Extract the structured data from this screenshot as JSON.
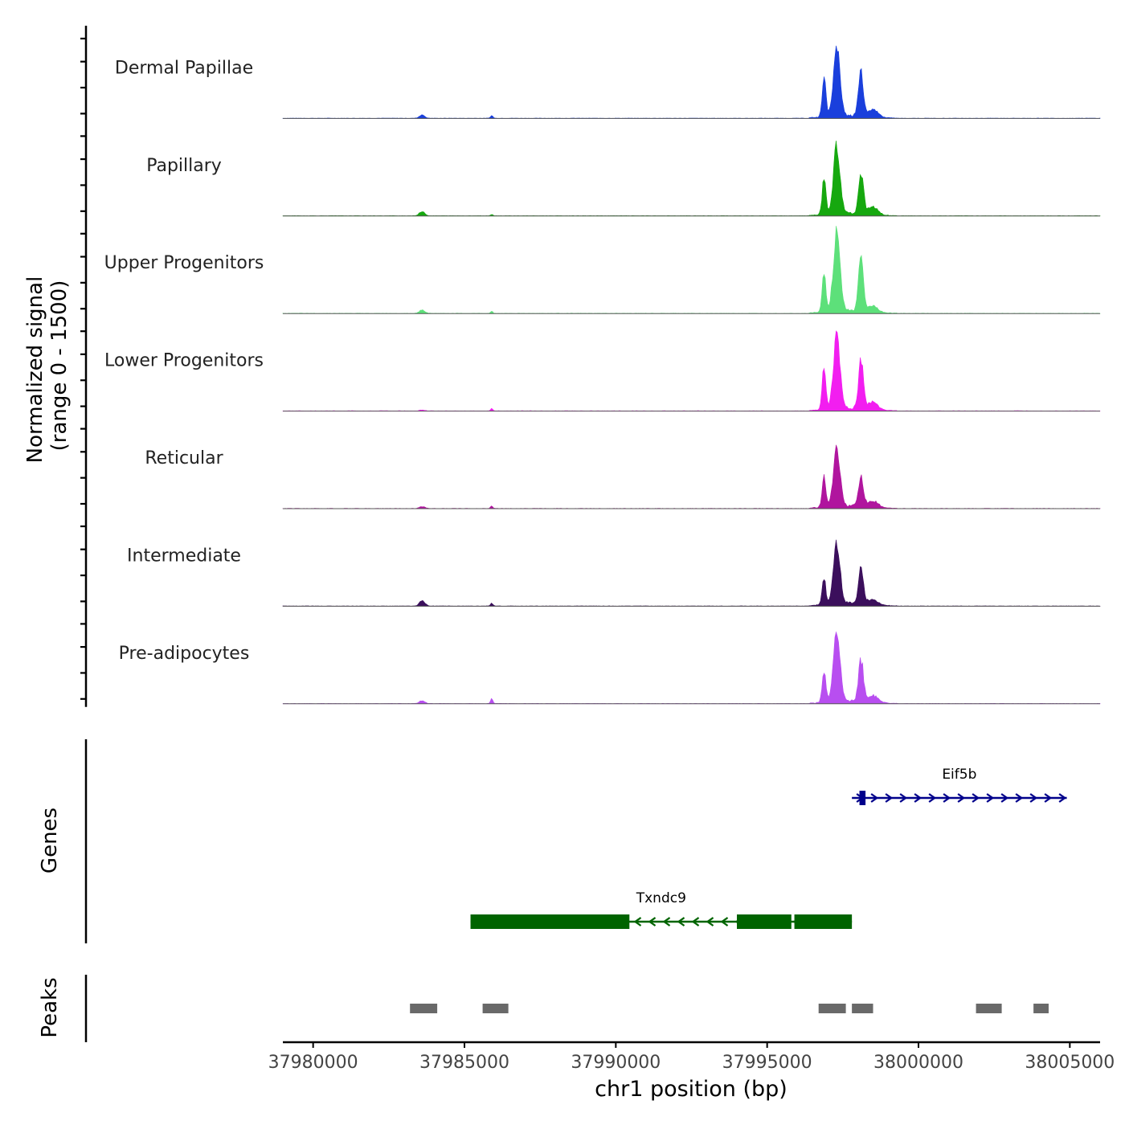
{
  "chart_data": {
    "type": "area",
    "chromosome": "chr1",
    "xlabel": "chr1 position (bp)",
    "xlim": [
      37979000,
      38006000
    ],
    "xticks": [
      37980000,
      37985000,
      37990000,
      37995000,
      38000000,
      38005000
    ],
    "xtick_labels": [
      "37980000",
      "37985000",
      "37990000",
      "37995000",
      "38000000",
      "38005000"
    ],
    "coverage": {
      "ylabel_line1": "Normalized signal",
      "ylabel_line2": "(range 0 - 1500)",
      "ylim": [
        0,
        1500
      ],
      "peak_positions": [
        37983600,
        37985900,
        37996880,
        37997300,
        37998100,
        37998500
      ],
      "tracks": [
        {
          "name": "Dermal Papillae",
          "color": "#1a3fdc",
          "heights": [
            70,
            60,
            850,
            1350,
            900,
            150
          ]
        },
        {
          "name": "Papillary",
          "color": "#16a80f",
          "heights": [
            90,
            30,
            750,
            1350,
            840,
            150
          ]
        },
        {
          "name": "Upper Progenitors",
          "color": "#5de07a",
          "heights": [
            70,
            40,
            800,
            1650,
            1110,
            120
          ]
        },
        {
          "name": "Lower Progenitors",
          "color": "#f21ef0",
          "heights": [
            20,
            50,
            900,
            1500,
            950,
            150
          ]
        },
        {
          "name": "Reticular",
          "color": "#b0159e",
          "heights": [
            40,
            50,
            640,
            1150,
            600,
            120
          ]
        },
        {
          "name": "Intermediate",
          "color": "#3b0f5c",
          "heights": [
            110,
            60,
            520,
            1200,
            700,
            100
          ]
        },
        {
          "name": "Pre-adipocytes",
          "color": "#b84ef0",
          "heights": [
            60,
            110,
            640,
            1450,
            850,
            140
          ]
        }
      ]
    },
    "genes": {
      "ylabel": "Genes",
      "items": [
        {
          "name": "Eif5b",
          "start": 37997800,
          "end": 38004900,
          "strand": "+",
          "color": "#00008b",
          "exons": [
            [
              37998050,
              37998250
            ]
          ]
        },
        {
          "name": "Txndc9",
          "start": 37985200,
          "end": 37997800,
          "strand": "-",
          "color": "#006400",
          "exons": [
            [
              37985200,
              37990450
            ],
            [
              37994000,
              37995800
            ],
            [
              37995900,
              37997800
            ]
          ]
        }
      ]
    },
    "peaks": {
      "ylabel": "Peaks",
      "color": "#696969",
      "regions": [
        [
          37983200,
          37984100
        ],
        [
          37985600,
          37986450
        ],
        [
          37996700,
          37997600
        ],
        [
          37997800,
          37998500
        ],
        [
          38001900,
          38002750
        ],
        [
          38003800,
          38004300
        ]
      ]
    }
  }
}
